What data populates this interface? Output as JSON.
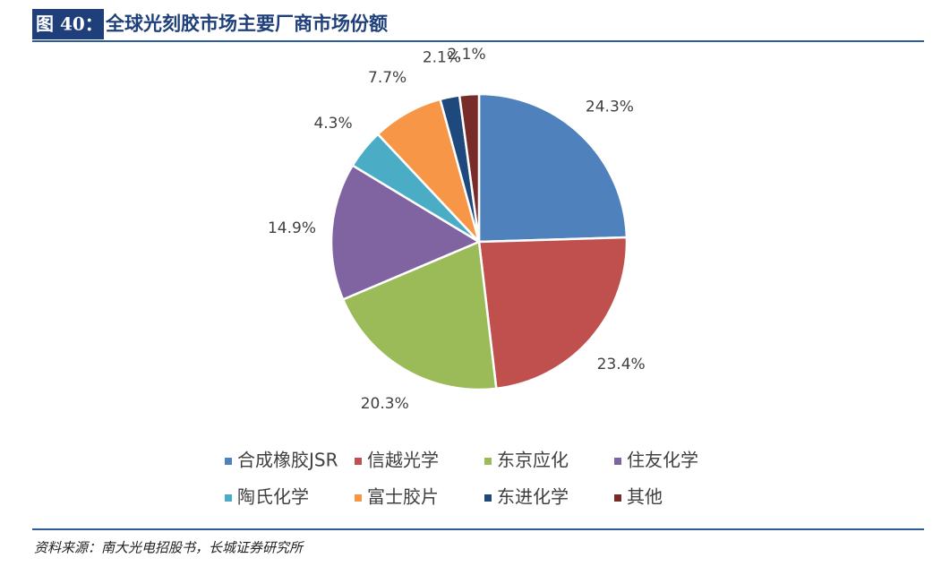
{
  "figure_label": "图 40：",
  "chart_data": {
    "type": "pie",
    "title": "全球光刻胶市场主要厂商市场份额",
    "categories": [
      "合成橡胶JSR",
      "信越光学",
      "东京应化",
      "住友化学",
      "陶氏化学",
      "富士胶片",
      "东进化学",
      "其他"
    ],
    "values": [
      24.3,
      23.4,
      20.3,
      14.9,
      4.3,
      7.7,
      2.1,
      2.1
    ],
    "value_labels": [
      "24.3%",
      "23.4%",
      "20.3%",
      "14.9%",
      "4.3%",
      "7.7%",
      "2.1%",
      "2.1%"
    ],
    "colors": [
      "#4f81bd",
      "#c0504d",
      "#9bbb59",
      "#8064a2",
      "#4bacc6",
      "#f79646",
      "#1f497d",
      "#772c2a"
    ],
    "legend": "bottom"
  },
  "source": "资料来源：南大光电招股书，长城证券研究所"
}
